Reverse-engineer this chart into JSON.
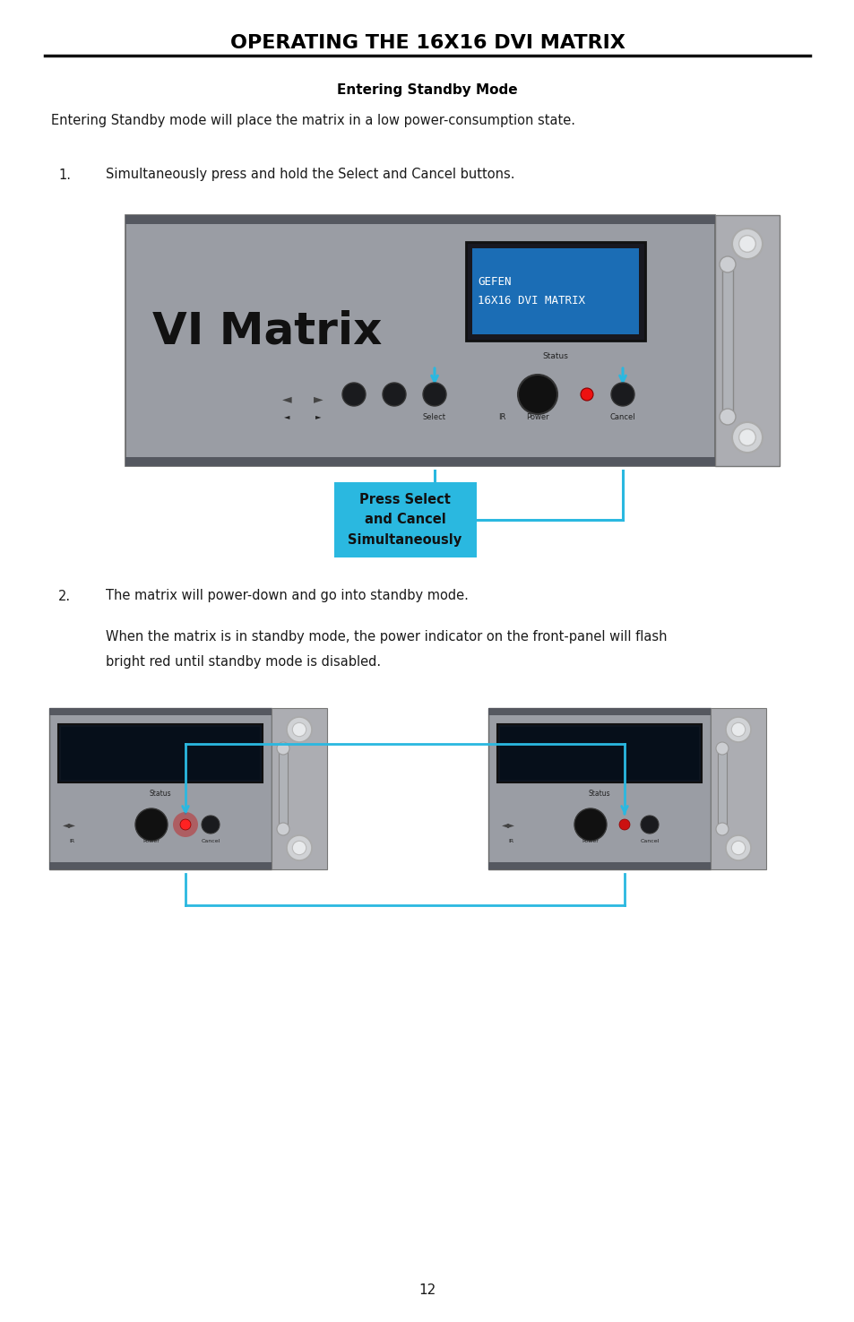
{
  "title": "OPERATING THE 16X16 DVI MATRIX",
  "section_title": "Entering Standby Mode",
  "para1": "Entering Standby mode will place the matrix in a low power-consumption state.",
  "step1_num": "1.",
  "step1_text": "Simultaneously press and hold the Select and Cancel buttons.",
  "callout_text": "Press Select\nand Cancel\nSimultaneously",
  "step2_num": "2.",
  "step2_text": "The matrix will power-down and go into standby mode.",
  "para2_line1": "When the matrix is in standby mode, the power indicator on the front-panel will flash",
  "para2_line2": "bright red until standby mode is disabled.",
  "page_number": "12",
  "bg_color": "#ffffff",
  "title_color": "#000000",
  "callout_bg": "#2ab8e0",
  "arrow_color": "#2ab8e0",
  "device_body": "#9a9da4",
  "device_dark": "#555860",
  "device_bracket": "#acadb2",
  "screen_border": "#1a1a2a",
  "screen_bg": "#1b6db5",
  "screen_text_color": "#ffffff",
  "screen_text": "GEFEN\n16X16 DVI MATRIX",
  "text_color": "#1a1a1a",
  "handle_color": "#c8cacc",
  "screw_color": "#d0d2d5"
}
